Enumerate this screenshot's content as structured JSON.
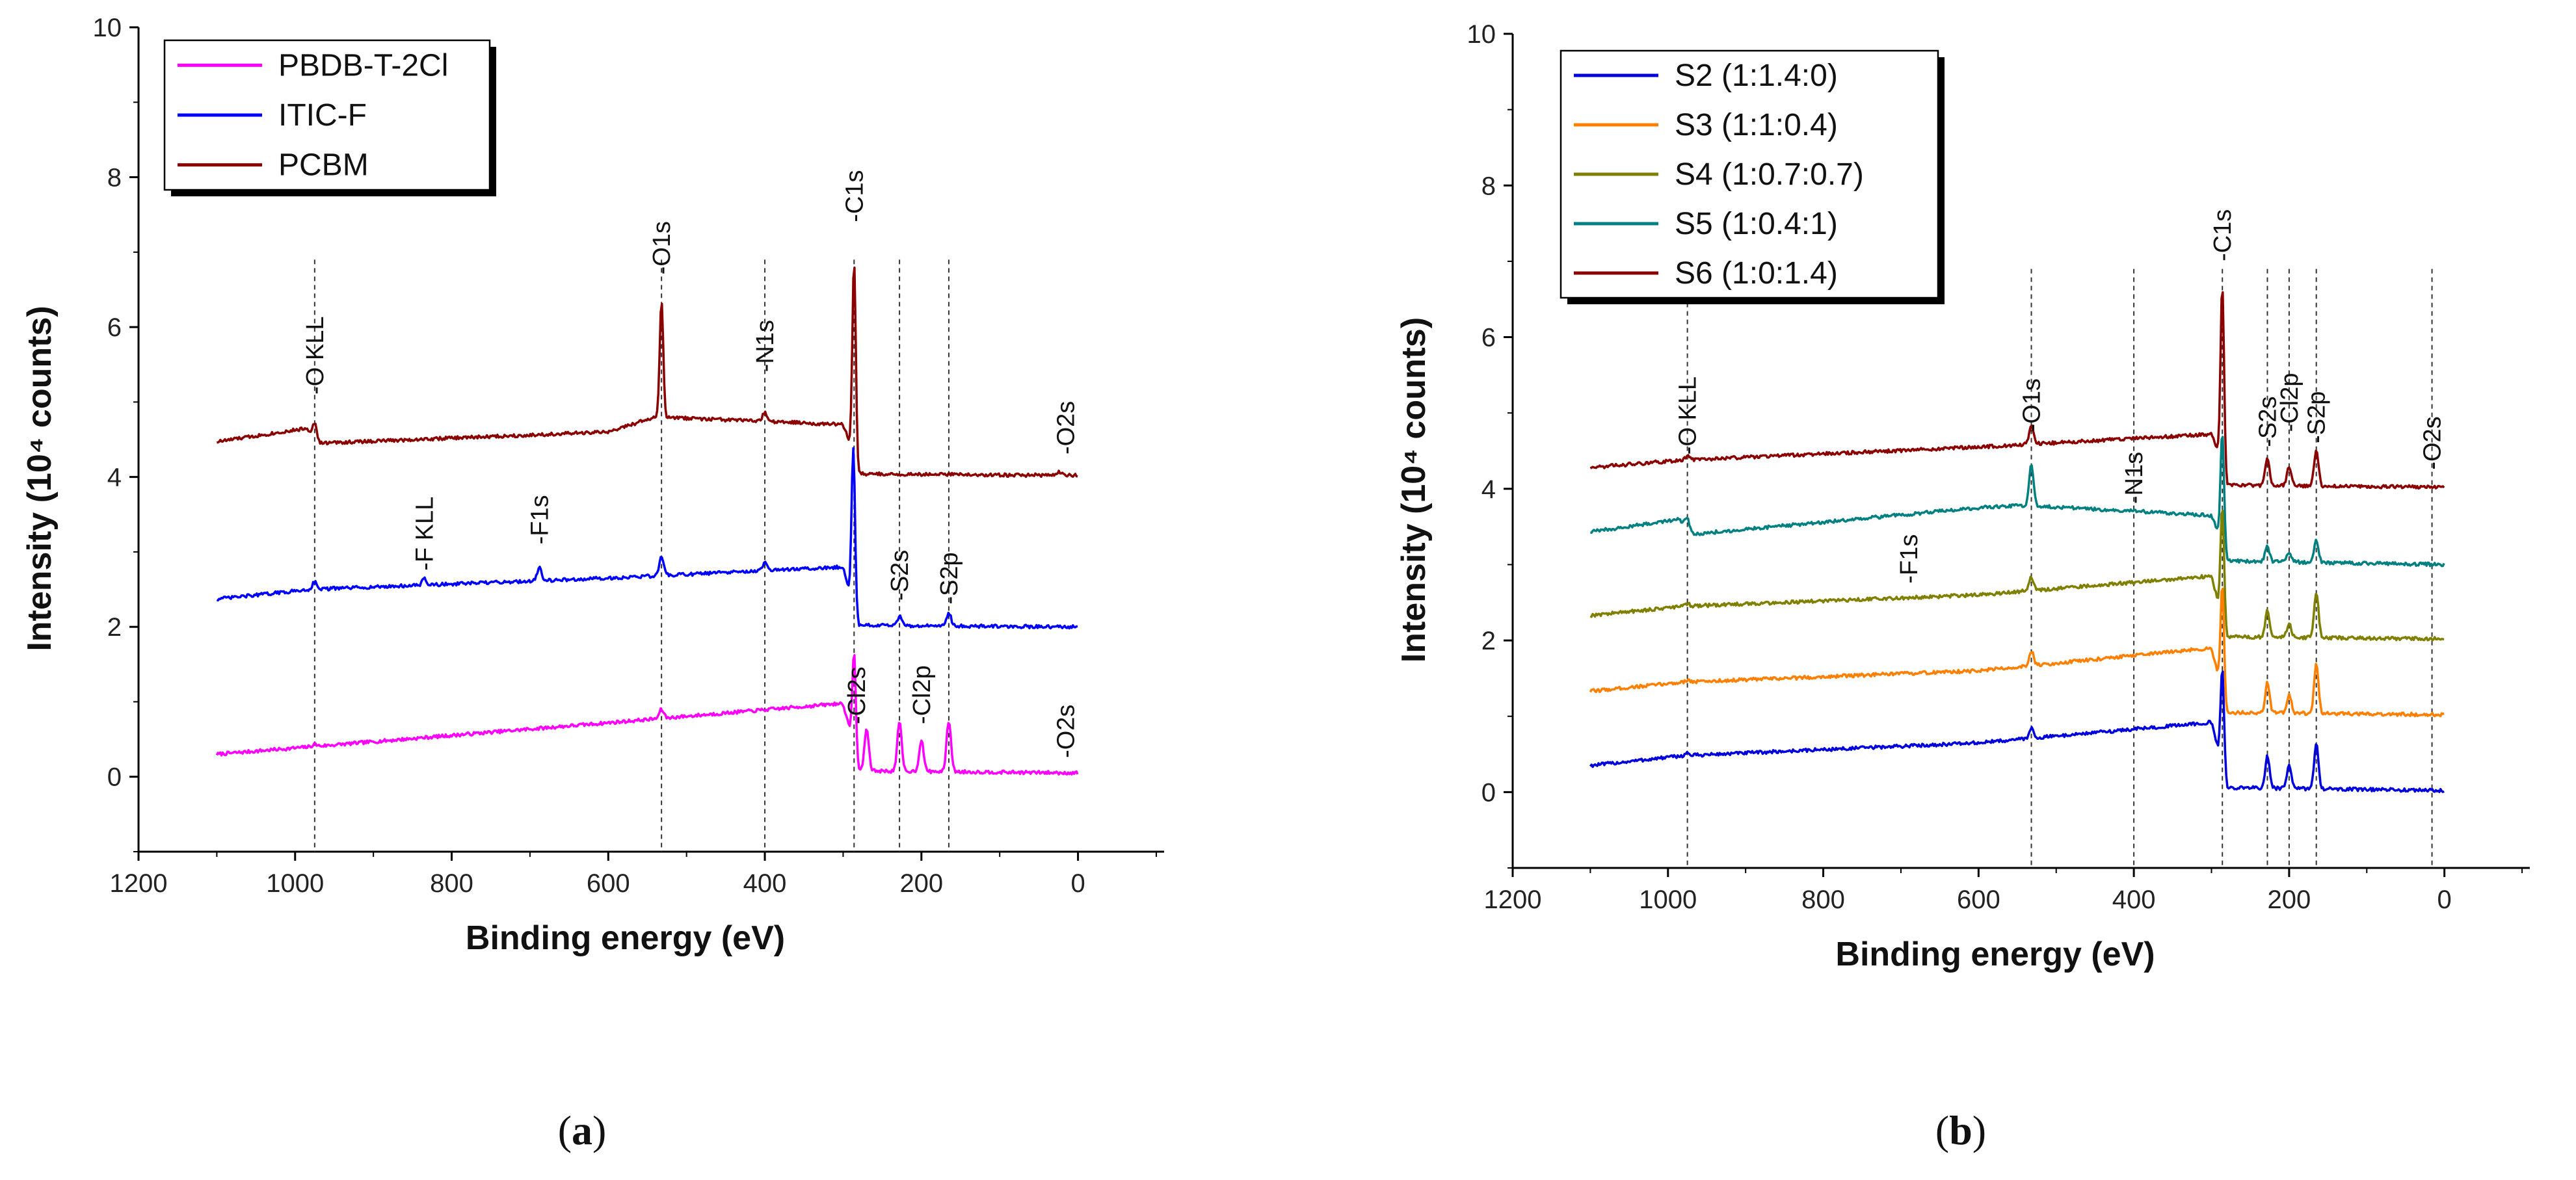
{
  "chart_data": [
    {
      "type": "line",
      "panel": "a",
      "caption_letter": "a",
      "xlabel": "Binding energy (eV)",
      "ylabel": "Intensity (10⁴ counts)",
      "xlim": [
        1200,
        -110
      ],
      "ylim": [
        -1,
        10
      ],
      "xticks": [
        1200,
        1000,
        800,
        600,
        400,
        200,
        0
      ],
      "yticks": [
        0,
        2,
        4,
        6,
        8,
        10
      ],
      "legend_position": "top-left",
      "series": [
        {
          "name": "PBDB-T-2Cl",
          "color": "#ff00ff",
          "baseline": 0,
          "bg": [
            [
              1100,
              0.3
            ],
            [
              980,
              0.4
            ],
            [
              600,
              0.72
            ],
            [
              300,
              0.98
            ],
            [
              290,
              0.55
            ],
            [
              280,
              0.08
            ],
            [
              0,
              0.05
            ]
          ],
          "peaks": [
            [
              975,
              0.03
            ],
            [
              532,
              0.12
            ],
            [
              286,
              1.3
            ],
            [
              270,
              0.55
            ],
            [
              228,
              0.65
            ],
            [
              200,
              0.42
            ],
            [
              165,
              0.68
            ]
          ]
        },
        {
          "name": "ITIC-F",
          "color": "#0000ff",
          "baseline": 2,
          "bg": [
            [
              1100,
              2.37
            ],
            [
              980,
              2.5
            ],
            [
              600,
              2.65
            ],
            [
              300,
              2.8
            ],
            [
              290,
              2.4
            ],
            [
              280,
              2.02
            ],
            [
              0,
              2.0
            ]
          ],
          "peaks": [
            [
              975,
              0.1
            ],
            [
              835,
              0.08
            ],
            [
              688,
              0.18
            ],
            [
              532,
              0.25
            ],
            [
              400,
              0.1
            ],
            [
              287,
              2.1
            ],
            [
              228,
              0.12
            ],
            [
              165,
              0.18
            ]
          ]
        },
        {
          "name": "PCBM",
          "color": "#8b0000",
          "baseline": 4,
          "bg": [
            [
              1100,
              4.47
            ],
            [
              985,
              4.65
            ],
            [
              970,
              4.45
            ],
            [
              600,
              4.6
            ],
            [
              540,
              4.8
            ],
            [
              300,
              4.7
            ],
            [
              290,
              4.4
            ],
            [
              280,
              4.04
            ],
            [
              0,
              4.02
            ]
          ],
          "peaks": [
            [
              975,
              0.2
            ],
            [
              532,
              1.55
            ],
            [
              400,
              0.12
            ],
            [
              286,
              2.6
            ],
            [
              24,
              0.05
            ]
          ]
        }
      ],
      "annotations": [
        {
          "text": "-O KLL",
          "x": 975,
          "y": 5.1
        },
        {
          "text": "-O1s",
          "x": 532,
          "y": 6.7
        },
        {
          "text": "-N1s",
          "x": 400,
          "y": 5.4
        },
        {
          "text": "-C1s",
          "x": 286,
          "y": 7.4
        },
        {
          "text": "-O2s",
          "x": 16,
          "y": 4.3
        },
        {
          "text": "-F KLL",
          "x": 835,
          "y": 2.75
        },
        {
          "text": "-F1s",
          "x": 688,
          "y": 3.1
        },
        {
          "text": "-S2s",
          "x": 228,
          "y": 2.35
        },
        {
          "text": "-S2p",
          "x": 165,
          "y": 2.3
        },
        {
          "text": "-Cl2s",
          "x": 283,
          "y": 0.7
        },
        {
          "text": "-Cl2p",
          "x": 200,
          "y": 0.7
        },
        {
          "text": "-O2s",
          "x": 16,
          "y": 0.25
        }
      ],
      "dashed_lines": [
        975,
        532,
        400,
        286,
        228,
        165
      ]
    },
    {
      "type": "line",
      "panel": "b",
      "caption_letter": "b",
      "xlabel": "Binding energy (eV)",
      "ylabel": "Intensity (10⁴ counts)",
      "xlim": [
        1200,
        -110
      ],
      "ylim": [
        -1,
        10
      ],
      "xticks": [
        1200,
        1000,
        800,
        600,
        400,
        200,
        0
      ],
      "yticks": [
        0,
        2,
        4,
        6,
        8,
        10
      ],
      "legend_position": "top-left",
      "series": [
        {
          "name": "S2 (1:1.4:0)",
          "color": "#0000dd",
          "baseline": 0,
          "bg": [
            [
              1100,
              0.35
            ],
            [
              980,
              0.48
            ],
            [
              600,
              0.65
            ],
            [
              300,
              0.92
            ],
            [
              290,
              0.5
            ],
            [
              280,
              0.06
            ],
            [
              0,
              0.02
            ]
          ],
          "peaks": [
            [
              975,
              0.03
            ],
            [
              532,
              0.13
            ],
            [
              286,
              1.3
            ],
            [
              228,
              0.42
            ],
            [
              200,
              0.3
            ],
            [
              165,
              0.6
            ]
          ]
        },
        {
          "name": "S3 (1:1:0.4)",
          "color": "#ff8000",
          "baseline": 1,
          "bg": [
            [
              1100,
              1.33
            ],
            [
              980,
              1.45
            ],
            [
              600,
              1.6
            ],
            [
              300,
              1.9
            ],
            [
              290,
              1.5
            ],
            [
              280,
              1.05
            ],
            [
              0,
              1.02
            ]
          ],
          "peaks": [
            [
              975,
              0.03
            ],
            [
              532,
              0.2
            ],
            [
              286,
              1.4
            ],
            [
              228,
              0.4
            ],
            [
              200,
              0.25
            ],
            [
              165,
              0.65
            ]
          ]
        },
        {
          "name": "S4 (1:0.7:0.7)",
          "color": "#808000",
          "baseline": 2,
          "bg": [
            [
              1100,
              2.33
            ],
            [
              980,
              2.45
            ],
            [
              600,
              2.6
            ],
            [
              300,
              2.85
            ],
            [
              290,
              2.45
            ],
            [
              280,
              2.05
            ],
            [
              0,
              2.02
            ]
          ],
          "peaks": [
            [
              975,
              0.03
            ],
            [
              532,
              0.18
            ],
            [
              286,
              1.5
            ],
            [
              228,
              0.35
            ],
            [
              200,
              0.18
            ],
            [
              165,
              0.6
            ]
          ]
        },
        {
          "name": "S5 (1:0.4:1)",
          "color": "#008080",
          "baseline": 3,
          "bg": [
            [
              1100,
              3.43
            ],
            [
              985,
              3.6
            ],
            [
              970,
              3.4
            ],
            [
              600,
              3.75
            ],
            [
              540,
              3.78
            ],
            [
              300,
              3.65
            ],
            [
              290,
              3.4
            ],
            [
              280,
              3.05
            ],
            [
              0,
              3.0
            ]
          ],
          "peaks": [
            [
              975,
              0.15
            ],
            [
              532,
              0.55
            ],
            [
              286,
              1.5
            ],
            [
              228,
              0.2
            ],
            [
              200,
              0.12
            ],
            [
              165,
              0.3
            ]
          ]
        },
        {
          "name": "S6 (1:0:1.4)",
          "color": "#8b0000",
          "baseline": 4,
          "bg": [
            [
              1100,
              4.28
            ],
            [
              980,
              4.38
            ],
            [
              600,
              4.55
            ],
            [
              300,
              4.72
            ],
            [
              290,
              4.45
            ],
            [
              280,
              4.05
            ],
            [
              0,
              4.02
            ]
          ],
          "peaks": [
            [
              975,
              0.05
            ],
            [
              532,
              0.25
            ],
            [
              286,
              2.4
            ],
            [
              228,
              0.35
            ],
            [
              200,
              0.25
            ],
            [
              165,
              0.45
            ]
          ]
        }
      ],
      "annotations": [
        {
          "text": "-O KLL",
          "x": 975,
          "y": 4.45
        },
        {
          "text": "-O1s",
          "x": 532,
          "y": 4.75
        },
        {
          "text": "-N1s",
          "x": 400,
          "y": 3.8
        },
        {
          "text": "-C1s",
          "x": 286,
          "y": 7.0
        },
        {
          "text": "-F1s",
          "x": 690,
          "y": 2.75
        },
        {
          "text": "-S2s",
          "x": 228,
          "y": 4.55
        },
        {
          "text": "-Cl2p",
          "x": 200,
          "y": 4.75
        },
        {
          "text": "-S2p",
          "x": 165,
          "y": 4.6
        },
        {
          "text": "-O2s",
          "x": 16,
          "y": 4.25
        }
      ],
      "dashed_lines": [
        975,
        532,
        400,
        286,
        228,
        200,
        165,
        16
      ]
    }
  ]
}
